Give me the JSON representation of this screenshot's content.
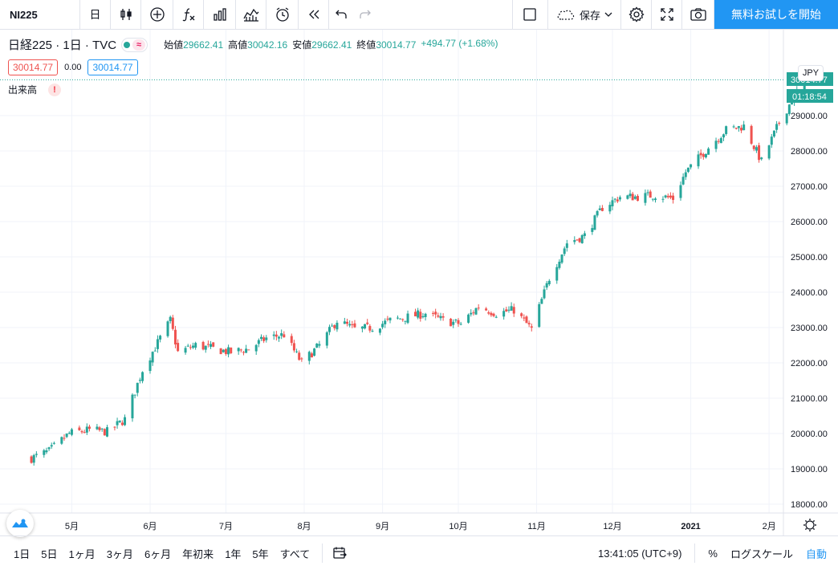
{
  "toolbar": {
    "symbol": "NI225",
    "interval": "日",
    "save_label": "保存",
    "trial_label": "無料お試しを開始"
  },
  "legend": {
    "title": "日経225",
    "interval": "1日",
    "source": "TVC",
    "approx_symbol": "≈",
    "open_label": "始値",
    "open": "29662.41",
    "high_label": "高値",
    "high": "30042.16",
    "low_label": "安値",
    "low": "29662.41",
    "close_label": "終値",
    "close": "30014.77",
    "change": "+494.77 (+1.68%)",
    "bid": "30014.77",
    "spread": "0.00",
    "ask": "30014.77",
    "volume_label": "出来高",
    "warning_symbol": "!"
  },
  "axis": {
    "currency": "JPY",
    "price_label": "30014.77",
    "countdown": "01:18:54",
    "price_ticks": [
      "29000.00",
      "28000.00",
      "27000.00",
      "26000.00",
      "25000.00",
      "24000.00",
      "23000.00",
      "22000.00",
      "21000.00",
      "20000.00",
      "19000.00",
      "18000.00"
    ],
    "time_ticks": [
      "5月",
      "6月",
      "7月",
      "8月",
      "9月",
      "10月",
      "11月",
      "12月",
      "2021",
      "2月"
    ]
  },
  "bottombar": {
    "ranges": [
      "1日",
      "5日",
      "1ヶ月",
      "3ヶ月",
      "6ヶ月",
      "年初来",
      "1年",
      "5年",
      "すべて"
    ],
    "clock": "13:41:05 (UTC+9)",
    "percent": "%",
    "log": "ログスケール",
    "auto": "自動"
  },
  "colors": {
    "up": "#26a69a",
    "down": "#ef5350",
    "accent": "#2196f3"
  },
  "chart_data": {
    "type": "candlestick",
    "ylim": [
      17750,
      30250
    ],
    "y_ticks": [
      18000,
      19000,
      20000,
      21000,
      22000,
      23000,
      24000,
      25000,
      26000,
      27000,
      28000,
      29000
    ],
    "x_ticks": [
      {
        "label": "5月",
        "date": "2020-05-01"
      },
      {
        "label": "6月",
        "date": "2020-06-01"
      },
      {
        "label": "7月",
        "date": "2020-07-01"
      },
      {
        "label": "8月",
        "date": "2020-08-01"
      },
      {
        "label": "9月",
        "date": "2020-09-01"
      },
      {
        "label": "10月",
        "date": "2020-10-01"
      },
      {
        "label": "11月",
        "date": "2020-11-01"
      },
      {
        "label": "12月",
        "date": "2020-12-01"
      },
      {
        "label": "2021",
        "date": "2021-01-01"
      },
      {
        "label": "2月",
        "date": "2021-02-01"
      }
    ],
    "path": [
      [
        "2020-04-15",
        19300
      ],
      [
        "2020-04-22",
        19500
      ],
      [
        "2020-04-30",
        20000
      ],
      [
        "2020-05-08",
        20100
      ],
      [
        "2020-05-15",
        20050
      ],
      [
        "2020-05-22",
        20400
      ],
      [
        "2020-05-29",
        21800
      ],
      [
        "2020-06-05",
        22700
      ],
      [
        "2020-06-09",
        23200
      ],
      [
        "2020-06-12",
        22300
      ],
      [
        "2020-06-19",
        22500
      ],
      [
        "2020-06-26",
        22400
      ],
      [
        "2020-07-03",
        22300
      ],
      [
        "2020-07-10",
        22400
      ],
      [
        "2020-07-17",
        22700
      ],
      [
        "2020-07-24",
        22800
      ],
      [
        "2020-07-31",
        22000
      ],
      [
        "2020-08-07",
        22500
      ],
      [
        "2020-08-14",
        23200
      ],
      [
        "2020-08-21",
        22950
      ],
      [
        "2020-08-28",
        23000
      ],
      [
        "2020-09-04",
        23200
      ],
      [
        "2020-09-11",
        23300
      ],
      [
        "2020-09-18",
        23400
      ],
      [
        "2020-09-25",
        23200
      ],
      [
        "2020-10-02",
        23100
      ],
      [
        "2020-10-09",
        23600
      ],
      [
        "2020-10-16",
        23400
      ],
      [
        "2020-10-23",
        23500
      ],
      [
        "2020-10-30",
        22950
      ],
      [
        "2020-11-06",
        24400
      ],
      [
        "2020-11-13",
        25400
      ],
      [
        "2020-11-20",
        25600
      ],
      [
        "2020-11-27",
        26400
      ],
      [
        "2020-12-04",
        26700
      ],
      [
        "2020-12-11",
        26700
      ],
      [
        "2020-12-18",
        26750
      ],
      [
        "2020-12-25",
        26650
      ],
      [
        "2020-12-30",
        27400
      ],
      [
        "2021-01-08",
        28100
      ],
      [
        "2021-01-15",
        28600
      ],
      [
        "2021-01-22",
        28700
      ],
      [
        "2021-01-29",
        27700
      ],
      [
        "2021-02-05",
        28800
      ],
      [
        "2021-02-12",
        29700
      ],
      [
        "2021-02-15",
        30014.77
      ]
    ]
  }
}
